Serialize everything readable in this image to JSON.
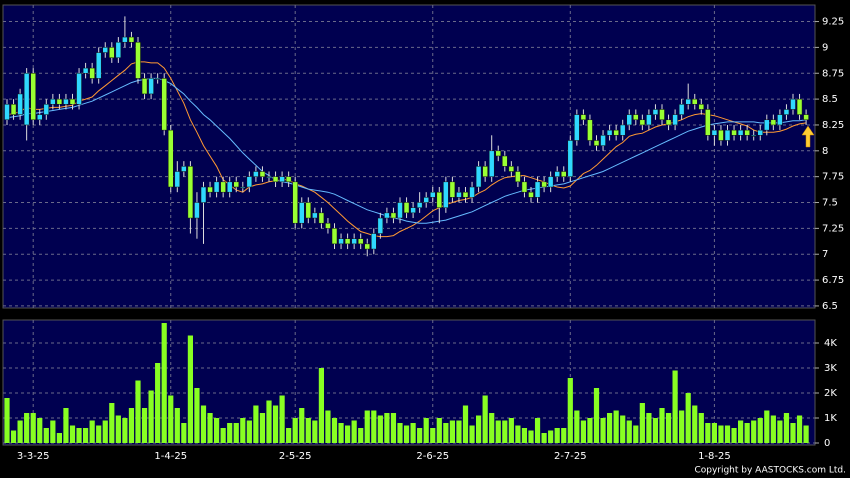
{
  "chart_data": {
    "type": "candlestick",
    "categories": [
      null,
      null,
      null,
      null,
      "3-3-25",
      null,
      null,
      null,
      null,
      null,
      null,
      null,
      null,
      null,
      null,
      null,
      null,
      null,
      null,
      null,
      null,
      null,
      null,
      null,
      null,
      "1-4-25",
      null,
      null,
      null,
      null,
      null,
      null,
      null,
      null,
      null,
      null,
      null,
      null,
      null,
      null,
      null,
      null,
      null,
      null,
      "2-5-25",
      null,
      null,
      null,
      null,
      null,
      null,
      null,
      null,
      null,
      null,
      null,
      null,
      null,
      null,
      null,
      null,
      null,
      null,
      null,
      null,
      "2-6-25",
      null,
      null,
      null,
      null,
      null,
      null,
      null,
      null,
      null,
      null,
      null,
      null,
      null,
      null,
      null,
      null,
      null,
      null,
      null,
      null,
      "2-7-25",
      null,
      null,
      null,
      null,
      null,
      null,
      null,
      null,
      null,
      null,
      null,
      null,
      null,
      null,
      null,
      null,
      null,
      null,
      null,
      null,
      null,
      "1-8-25",
      null,
      null,
      null,
      null,
      null,
      null,
      null,
      null,
      null,
      null,
      null,
      null,
      null,
      null
    ],
    "ohlc": [
      [
        8.3,
        8.5,
        8.25,
        8.45
      ],
      [
        8.45,
        8.5,
        8.3,
        8.35
      ],
      [
        8.35,
        8.6,
        8.3,
        8.55
      ],
      [
        8.25,
        8.8,
        8.1,
        8.75
      ],
      [
        8.75,
        8.8,
        8.25,
        8.3
      ],
      [
        8.3,
        8.4,
        8.25,
        8.35
      ],
      [
        8.35,
        8.5,
        8.3,
        8.45
      ],
      [
        8.45,
        8.55,
        8.4,
        8.5
      ],
      [
        8.5,
        8.55,
        8.4,
        8.45
      ],
      [
        8.45,
        8.55,
        8.4,
        8.5
      ],
      [
        8.5,
        8.55,
        8.4,
        8.45
      ],
      [
        8.45,
        8.8,
        8.4,
        8.75
      ],
      [
        8.75,
        8.85,
        8.7,
        8.8
      ],
      [
        8.8,
        8.85,
        8.65,
        8.7
      ],
      [
        8.7,
        9.0,
        8.65,
        8.95
      ],
      [
        8.95,
        9.05,
        8.9,
        9.0
      ],
      [
        9.0,
        9.05,
        8.85,
        8.9
      ],
      [
        8.9,
        9.1,
        8.85,
        9.05
      ],
      [
        9.05,
        9.3,
        9.0,
        9.1
      ],
      [
        9.1,
        9.15,
        9.0,
        9.05
      ],
      [
        9.05,
        9.1,
        8.65,
        8.7
      ],
      [
        8.7,
        8.75,
        8.5,
        8.55
      ],
      [
        8.55,
        8.75,
        8.5,
        8.7
      ],
      [
        8.7,
        8.75,
        8.65,
        8.7
      ],
      [
        8.7,
        8.75,
        8.15,
        8.2
      ],
      [
        8.2,
        8.25,
        7.6,
        7.65
      ],
      [
        7.65,
        7.9,
        7.6,
        7.8
      ],
      [
        7.8,
        7.9,
        7.75,
        7.85
      ],
      [
        7.85,
        7.9,
        7.2,
        7.35
      ],
      [
        7.35,
        7.6,
        7.15,
        7.5
      ],
      [
        7.5,
        7.7,
        7.1,
        7.65
      ],
      [
        7.65,
        7.7,
        7.55,
        7.6
      ],
      [
        7.6,
        7.75,
        7.55,
        7.7
      ],
      [
        7.7,
        7.75,
        7.55,
        7.6
      ],
      [
        7.6,
        7.75,
        7.55,
        7.7
      ],
      [
        7.7,
        7.75,
        7.6,
        7.65
      ],
      [
        7.65,
        7.7,
        7.6,
        7.65
      ],
      [
        7.65,
        7.8,
        7.6,
        7.75
      ],
      [
        7.75,
        7.85,
        7.7,
        7.8
      ],
      [
        7.8,
        7.85,
        7.7,
        7.75
      ],
      [
        7.75,
        7.8,
        7.7,
        7.75
      ],
      [
        7.75,
        7.8,
        7.65,
        7.7
      ],
      [
        7.7,
        7.8,
        7.65,
        7.75
      ],
      [
        7.75,
        7.8,
        7.65,
        7.7
      ],
      [
        7.7,
        7.75,
        7.25,
        7.3
      ],
      [
        7.3,
        7.55,
        7.25,
        7.5
      ],
      [
        7.5,
        7.55,
        7.3,
        7.35
      ],
      [
        7.35,
        7.45,
        7.3,
        7.4
      ],
      [
        7.4,
        7.45,
        7.25,
        7.3
      ],
      [
        7.3,
        7.35,
        7.2,
        7.25
      ],
      [
        7.25,
        7.3,
        7.05,
        7.1
      ],
      [
        7.1,
        7.2,
        7.05,
        7.15
      ],
      [
        7.15,
        7.2,
        7.05,
        7.1
      ],
      [
        7.1,
        7.2,
        7.05,
        7.15
      ],
      [
        7.15,
        7.2,
        7.05,
        7.1
      ],
      [
        7.1,
        7.15,
        6.98,
        7.05
      ],
      [
        7.05,
        7.25,
        7.0,
        7.2
      ],
      [
        7.2,
        7.4,
        7.15,
        7.35
      ],
      [
        7.35,
        7.45,
        7.3,
        7.4
      ],
      [
        7.4,
        7.45,
        7.3,
        7.35
      ],
      [
        7.35,
        7.55,
        7.3,
        7.5
      ],
      [
        7.5,
        7.55,
        7.35,
        7.4
      ],
      [
        7.4,
        7.5,
        7.35,
        7.45
      ],
      [
        7.45,
        7.6,
        7.4,
        7.5
      ],
      [
        7.5,
        7.6,
        7.45,
        7.55
      ],
      [
        7.55,
        7.65,
        7.5,
        7.6
      ],
      [
        7.6,
        7.65,
        7.3,
        7.45
      ],
      [
        7.45,
        7.75,
        7.4,
        7.7
      ],
      [
        7.7,
        7.75,
        7.5,
        7.55
      ],
      [
        7.55,
        7.65,
        7.5,
        7.6
      ],
      [
        7.6,
        7.65,
        7.5,
        7.55
      ],
      [
        7.55,
        7.7,
        7.5,
        7.65
      ],
      [
        7.65,
        7.9,
        7.6,
        7.85
      ],
      [
        7.85,
        7.9,
        7.7,
        7.75
      ],
      [
        7.75,
        8.15,
        7.7,
        8.0
      ],
      [
        8.0,
        8.05,
        7.9,
        7.95
      ],
      [
        7.95,
        8.0,
        7.8,
        7.85
      ],
      [
        7.85,
        7.9,
        7.75,
        7.8
      ],
      [
        7.8,
        7.85,
        7.65,
        7.7
      ],
      [
        7.7,
        7.75,
        7.55,
        7.6
      ],
      [
        7.6,
        7.65,
        7.5,
        7.55
      ],
      [
        7.55,
        7.75,
        7.5,
        7.7
      ],
      [
        7.7,
        7.75,
        7.6,
        7.65
      ],
      [
        7.65,
        7.8,
        7.6,
        7.75
      ],
      [
        7.75,
        7.85,
        7.7,
        7.8
      ],
      [
        7.8,
        7.85,
        7.7,
        7.75
      ],
      [
        7.75,
        8.15,
        7.7,
        8.1
      ],
      [
        8.1,
        8.4,
        8.05,
        8.35
      ],
      [
        8.35,
        8.4,
        8.25,
        8.3
      ],
      [
        8.3,
        8.35,
        8.05,
        8.1
      ],
      [
        8.1,
        8.15,
        8.0,
        8.05
      ],
      [
        8.05,
        8.2,
        8.0,
        8.15
      ],
      [
        8.15,
        8.25,
        8.1,
        8.2
      ],
      [
        8.2,
        8.25,
        8.1,
        8.15
      ],
      [
        8.15,
        8.3,
        8.1,
        8.25
      ],
      [
        8.25,
        8.4,
        8.2,
        8.35
      ],
      [
        8.35,
        8.4,
        8.25,
        8.3
      ],
      [
        8.3,
        8.35,
        8.2,
        8.25
      ],
      [
        8.25,
        8.4,
        8.2,
        8.35
      ],
      [
        8.35,
        8.45,
        8.3,
        8.4
      ],
      [
        8.4,
        8.45,
        8.25,
        8.3
      ],
      [
        8.3,
        8.35,
        8.2,
        8.25
      ],
      [
        8.25,
        8.4,
        8.2,
        8.35
      ],
      [
        8.35,
        8.5,
        8.3,
        8.45
      ],
      [
        8.45,
        8.65,
        8.4,
        8.5
      ],
      [
        8.5,
        8.55,
        8.4,
        8.45
      ],
      [
        8.45,
        8.5,
        8.35,
        8.4
      ],
      [
        8.4,
        8.45,
        8.1,
        8.15
      ],
      [
        8.15,
        8.25,
        8.05,
        8.2
      ],
      [
        8.2,
        8.25,
        8.05,
        8.1
      ],
      [
        8.1,
        8.25,
        8.05,
        8.2
      ],
      [
        8.2,
        8.25,
        8.1,
        8.15
      ],
      [
        8.15,
        8.25,
        8.1,
        8.2
      ],
      [
        8.2,
        8.25,
        8.1,
        8.15
      ],
      [
        8.15,
        8.2,
        8.1,
        8.15
      ],
      [
        8.15,
        8.25,
        8.1,
        8.2
      ],
      [
        8.2,
        8.35,
        8.15,
        8.3
      ],
      [
        8.3,
        8.35,
        8.2,
        8.25
      ],
      [
        8.25,
        8.4,
        8.2,
        8.35
      ],
      [
        8.35,
        8.45,
        8.3,
        8.4
      ],
      [
        8.4,
        8.55,
        8.35,
        8.5
      ],
      [
        8.5,
        8.55,
        8.3,
        8.35
      ],
      [
        8.35,
        8.4,
        8.25,
        8.3
      ]
    ],
    "up_color": "#2fd8ff",
    "down_color": "#99ff33",
    "ma_lines": [
      {
        "color": "#ff9933",
        "values": [
          8.35,
          8.36,
          8.38,
          8.42,
          8.4,
          8.4,
          8.41,
          8.42,
          8.42,
          8.43,
          8.44,
          8.48,
          8.5,
          8.52,
          8.58,
          8.63,
          8.68,
          8.73,
          8.78,
          8.84,
          8.86,
          8.86,
          8.85,
          8.85,
          8.8,
          8.7,
          8.58,
          8.46,
          8.3,
          8.18,
          8.05,
          7.95,
          7.85,
          7.72,
          7.67,
          7.62,
          7.6,
          7.65,
          7.67,
          7.68,
          7.7,
          7.71,
          7.72,
          7.72,
          7.68,
          7.66,
          7.63,
          7.6,
          7.55,
          7.5,
          7.44,
          7.38,
          7.32,
          7.27,
          7.22,
          7.2,
          7.18,
          7.17,
          7.17,
          7.18,
          7.22,
          7.25,
          7.28,
          7.32,
          7.37,
          7.42,
          7.45,
          7.48,
          7.5,
          7.52,
          7.53,
          7.55,
          7.59,
          7.62,
          7.67,
          7.71,
          7.74,
          7.75,
          7.76,
          7.76,
          7.74,
          7.72,
          7.7,
          7.67,
          7.65,
          7.64,
          7.66,
          7.72,
          7.78,
          7.81,
          7.86,
          7.92,
          7.98,
          8.04,
          8.08,
          8.14,
          8.16,
          8.17,
          8.2,
          8.23,
          8.25,
          8.26,
          8.28,
          8.3,
          8.33,
          8.35,
          8.36,
          8.35,
          8.34,
          8.32,
          8.3,
          8.28,
          8.26,
          8.24,
          8.2,
          8.18,
          8.18,
          8.18,
          8.19,
          8.21,
          8.24,
          8.26,
          8.27
        ]
      },
      {
        "color": "#66bbff",
        "values": [
          8.32,
          8.33,
          8.34,
          8.36,
          8.36,
          8.37,
          8.38,
          8.39,
          8.4,
          8.41,
          8.42,
          8.44,
          8.46,
          8.48,
          8.51,
          8.54,
          8.57,
          8.6,
          8.63,
          8.66,
          8.68,
          8.69,
          8.7,
          8.7,
          8.68,
          8.65,
          8.6,
          8.55,
          8.48,
          8.42,
          8.35,
          8.3,
          8.24,
          8.18,
          8.12,
          8.05,
          7.98,
          7.92,
          7.86,
          7.8,
          7.76,
          7.72,
          7.7,
          7.69,
          7.67,
          7.65,
          7.63,
          7.62,
          7.61,
          7.6,
          7.58,
          7.55,
          7.52,
          7.49,
          7.46,
          7.43,
          7.41,
          7.39,
          7.37,
          7.35,
          7.34,
          7.32,
          7.31,
          7.3,
          7.3,
          7.31,
          7.32,
          7.33,
          7.35,
          7.37,
          7.39,
          7.41,
          7.44,
          7.47,
          7.5,
          7.53,
          7.56,
          7.58,
          7.6,
          7.62,
          7.63,
          7.64,
          7.65,
          7.66,
          7.67,
          7.68,
          7.7,
          7.72,
          7.74,
          7.76,
          7.78,
          7.8,
          7.83,
          7.86,
          7.89,
          7.92,
          7.95,
          7.98,
          8.01,
          8.04,
          8.07,
          8.1,
          8.13,
          8.16,
          8.19,
          8.21,
          8.23,
          8.25,
          8.26,
          8.27,
          8.28,
          8.28,
          8.28,
          8.28,
          8.28,
          8.27,
          8.27,
          8.27,
          8.27,
          8.28,
          8.29,
          8.29,
          8.3
        ]
      }
    ],
    "ylim": [
      6.48,
      9.41
    ],
    "yticks": [
      6.5,
      6.75,
      7,
      7.25,
      7.5,
      7.75,
      8,
      8.25,
      8.5,
      8.75,
      9,
      9.25
    ],
    "grid": true,
    "volume": {
      "color": "#88ff22",
      "values": [
        1800,
        500,
        900,
        1200,
        1200,
        1000,
        600,
        900,
        400,
        1400,
        700,
        600,
        600,
        900,
        700,
        900,
        1600,
        1100,
        1000,
        1400,
        2500,
        1400,
        2100,
        3200,
        4800,
        1900,
        1400,
        800,
        4300,
        2200,
        1500,
        1200,
        1000,
        600,
        800,
        800,
        1000,
        900,
        1500,
        1200,
        1700,
        1500,
        1900,
        600,
        1000,
        1400,
        1000,
        900,
        3000,
        1300,
        1000,
        800,
        700,
        900,
        600,
        1300,
        1300,
        1100,
        1200,
        1200,
        800,
        700,
        800,
        600,
        1000,
        600,
        1000,
        800,
        900,
        900,
        1500,
        700,
        1100,
        1900,
        1200,
        900,
        900,
        1000,
        700,
        600,
        500,
        1000,
        400,
        500,
        600,
        600,
        2600,
        1300,
        900,
        1000,
        2200,
        1000,
        1200,
        1300,
        1100,
        900,
        700,
        1600,
        1200,
        1000,
        1400,
        1200,
        2900,
        1300,
        2000,
        1500,
        1200,
        800,
        800,
        700,
        700,
        600,
        900,
        800,
        900,
        1000,
        1300,
        1100,
        900,
        1200,
        800,
        1100,
        700
      ],
      "ylim": [
        -80,
        4920
      ],
      "yticks": [
        0,
        {
          "value": 1000,
          "label": "1K"
        },
        {
          "value": 2000,
          "label": "2K"
        },
        {
          "value": 3000,
          "label": "3K"
        },
        {
          "value": 4000,
          "label": "4K"
        }
      ]
    },
    "copyright": "Copyright by AASTOCKS.com Ltd."
  }
}
